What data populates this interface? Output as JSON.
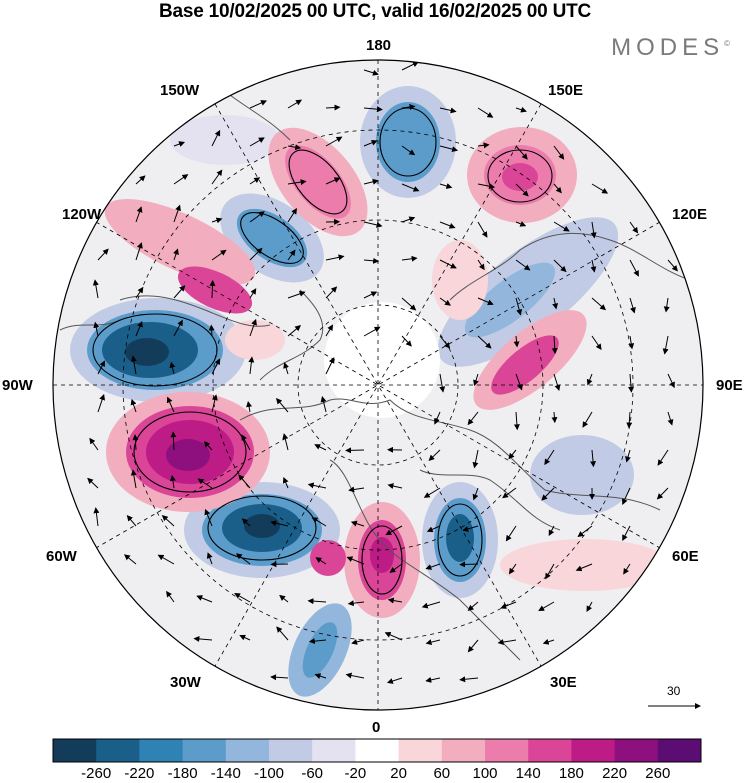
{
  "title": "Base 10/02/2025 00 UTC, valid 16/02/2025 00 UTC",
  "brand": "MODES",
  "brand_mark": "©",
  "map": {
    "projection": "north polar stereographic",
    "longitude_labels": {
      "top": "180",
      "bottom": "0",
      "left": "90W",
      "right": "90E",
      "upper_left_1": "150W",
      "upper_left_2": "120W",
      "upper_right_1": "150E",
      "upper_right_2": "120E",
      "lower_left_1": "60W",
      "lower_left_2": "30W",
      "lower_right_1": "60E",
      "lower_right_2": "30E"
    },
    "reference_vector_label": "30",
    "colors": {
      "neg_strong": "#0d3f63",
      "pos_strong": "#66107a",
      "land_outline": "#555555"
    }
  },
  "colorbar": {
    "ticks": [
      "-260",
      "-220",
      "-180",
      "-140",
      "-100",
      "-60",
      "-20",
      "20",
      "60",
      "100",
      "140",
      "180",
      "220",
      "260"
    ],
    "colors": [
      "#133c5b",
      "#1a5f8a",
      "#2f82b4",
      "#5c9ccb",
      "#93b6dc",
      "#c1cbe5",
      "#e4e2f0",
      "#ffffff",
      "#f8d6d9",
      "#f2adbe",
      "#eb7cac",
      "#db4597",
      "#bd1b86",
      "#8d107e",
      "#5c0d73"
    ]
  }
}
